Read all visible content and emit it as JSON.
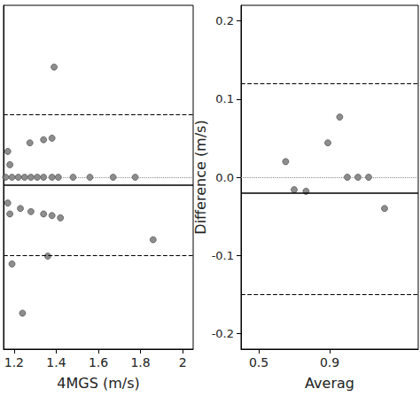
{
  "chart_data": [
    {
      "type": "scatter",
      "x_label": "4MGS (m/s)",
      "x": [
        1.39,
        1.17,
        1.18,
        1.16,
        1.19,
        1.22,
        1.25,
        1.28,
        1.31,
        1.34,
        1.38,
        1.41,
        1.48,
        1.56,
        1.67,
        1.775,
        1.275,
        1.34,
        1.38,
        1.17,
        1.18,
        1.23,
        1.28,
        1.34,
        1.38,
        1.42,
        1.19,
        1.36,
        1.24,
        1.86
      ],
      "values": [
        0.141,
        0.033,
        0.016,
        0,
        0,
        0,
        0,
        0,
        0,
        0,
        0,
        0,
        0,
        0,
        0,
        0,
        0.044,
        0.048,
        0.05,
        -0.033,
        -0.047,
        -0.04,
        -0.044,
        -0.047,
        -0.049,
        -0.052,
        -0.111,
        -0.101,
        -0.174,
        -0.08
      ],
      "color": "#707070",
      "marker": "circle",
      "reference_lines": [
        {
          "value": 0.078,
          "line_style": "dashed"
        },
        {
          "value": -0.101,
          "line_style": "dashed"
        },
        {
          "value": -0.011,
          "line_style": "solid"
        },
        {
          "value": 0,
          "line_style": "dotted"
        }
      ],
      "xlim": [
        1.15,
        2.05
      ],
      "xticks": [
        1.2,
        1.4,
        1.6,
        1.8,
        2
      ],
      "ylim": [
        -0.22,
        0.22
      ],
      "yticks": [
        -0.2,
        -0.1,
        0,
        0.1,
        0.2
      ],
      "tick_labels": "x",
      "grid": false
    },
    {
      "type": "scatter",
      "x_label": "Averag",
      "y_label": "Difference (m/s)",
      "x": [
        0.652,
        0.7,
        0.767,
        0.89,
        0.957,
        1.0,
        1.06,
        1.12,
        1.21
      ],
      "values": [
        0.02,
        -0.016,
        -0.018,
        0.044,
        0.077,
        0,
        0,
        0,
        -0.04
      ],
      "color": "#707070",
      "marker": "circle",
      "reference_lines": [
        {
          "value": 0.12,
          "line_style": "dashed"
        },
        {
          "value": -0.152,
          "line_style": "dashed"
        },
        {
          "value": -0.016,
          "line_style": "solid"
        },
        {
          "value": 0,
          "line_style": "dotted"
        }
      ],
      "xlim": [
        0.4,
        1.4
      ],
      "xticks": [
        0.5,
        0.9
      ],
      "ylim": [
        -0.22,
        0.22
      ],
      "yticks": [
        {
          "value": -0.2,
          "label": "-0.2"
        },
        {
          "value": -0.1,
          "label": "-0.1"
        },
        {
          "value": 0,
          "label": "0.0"
        },
        {
          "value": 0.1,
          "label": "0.1"
        },
        {
          "value": 0.2,
          "label": "0.2"
        }
      ],
      "tick_labels": true,
      "grid": false
    }
  ]
}
